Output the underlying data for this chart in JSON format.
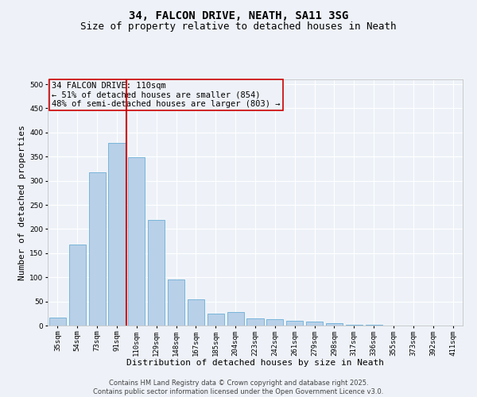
{
  "title_line1": "34, FALCON DRIVE, NEATH, SA11 3SG",
  "title_line2": "Size of property relative to detached houses in Neath",
  "xlabel": "Distribution of detached houses by size in Neath",
  "ylabel": "Number of detached properties",
  "categories": [
    "35sqm",
    "54sqm",
    "73sqm",
    "91sqm",
    "110sqm",
    "129sqm",
    "148sqm",
    "167sqm",
    "185sqm",
    "204sqm",
    "223sqm",
    "242sqm",
    "261sqm",
    "279sqm",
    "298sqm",
    "317sqm",
    "336sqm",
    "355sqm",
    "373sqm",
    "392sqm",
    "411sqm"
  ],
  "values": [
    17,
    167,
    318,
    378,
    348,
    218,
    95,
    55,
    25,
    28,
    15,
    13,
    10,
    8,
    5,
    2,
    1,
    0,
    0,
    0,
    0
  ],
  "bar_color": "#b8d0e8",
  "bar_edgecolor": "#6aaed6",
  "vline_color": "#cc0000",
  "annotation_text": "34 FALCON DRIVE: 110sqm\n← 51% of detached houses are smaller (854)\n48% of semi-detached houses are larger (803) →",
  "annotation_box_edgecolor": "#cc0000",
  "ylim": [
    0,
    510
  ],
  "yticks": [
    0,
    50,
    100,
    150,
    200,
    250,
    300,
    350,
    400,
    450,
    500
  ],
  "background_color": "#eef2f8",
  "grid_color": "#ffffff",
  "footer_line1": "Contains HM Land Registry data © Crown copyright and database right 2025.",
  "footer_line2": "Contains public sector information licensed under the Open Government Licence v3.0.",
  "title_fontsize": 10,
  "subtitle_fontsize": 9,
  "tick_fontsize": 6.5,
  "xlabel_fontsize": 8,
  "ylabel_fontsize": 8,
  "annotation_fontsize": 7.5,
  "footer_fontsize": 6
}
